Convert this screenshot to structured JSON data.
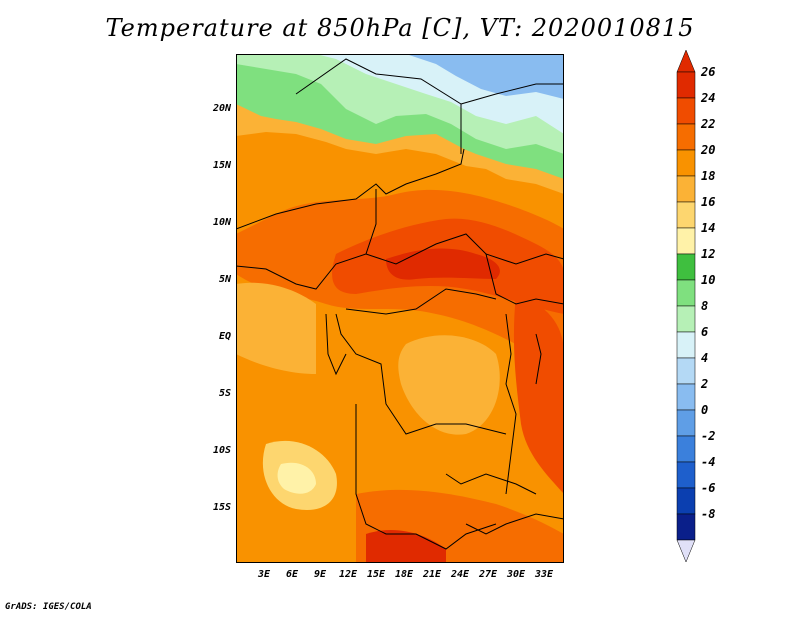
{
  "title": "Temperature at 850hPa [C], VT: 2020010815",
  "footer": "GrADS: IGES/COLA",
  "map": {
    "lat_labels": [
      "20N",
      "15N",
      "10N",
      "5N",
      "EQ",
      "5S",
      "10S",
      "15S"
    ],
    "lon_labels": [
      "3E",
      "6E",
      "9E",
      "12E",
      "15E",
      "18E",
      "21E",
      "24E",
      "27E",
      "30E",
      "33E"
    ]
  },
  "colorbar": {
    "labels": [
      "26",
      "24",
      "22",
      "20",
      "18",
      "16",
      "14",
      "12",
      "10",
      "8",
      "6",
      "4",
      "2",
      "0",
      "-2",
      "-4",
      "-6",
      "-8"
    ],
    "colors": [
      "#e02a00",
      "#f04c00",
      "#f66d00",
      "#f99200",
      "#fbb236",
      "#fdd66f",
      "#fff2a8",
      "#3fbf3f",
      "#7fe07f",
      "#b6f0b6",
      "#d8f2f8",
      "#b4d9f5",
      "#89bcf0",
      "#5f9ee6",
      "#3b80dc",
      "#1e5fcc",
      "#0b3fb0",
      "#0a1f8a"
    ],
    "top_color": "#e02a00",
    "bottom_color": "#e0e0f8"
  }
}
